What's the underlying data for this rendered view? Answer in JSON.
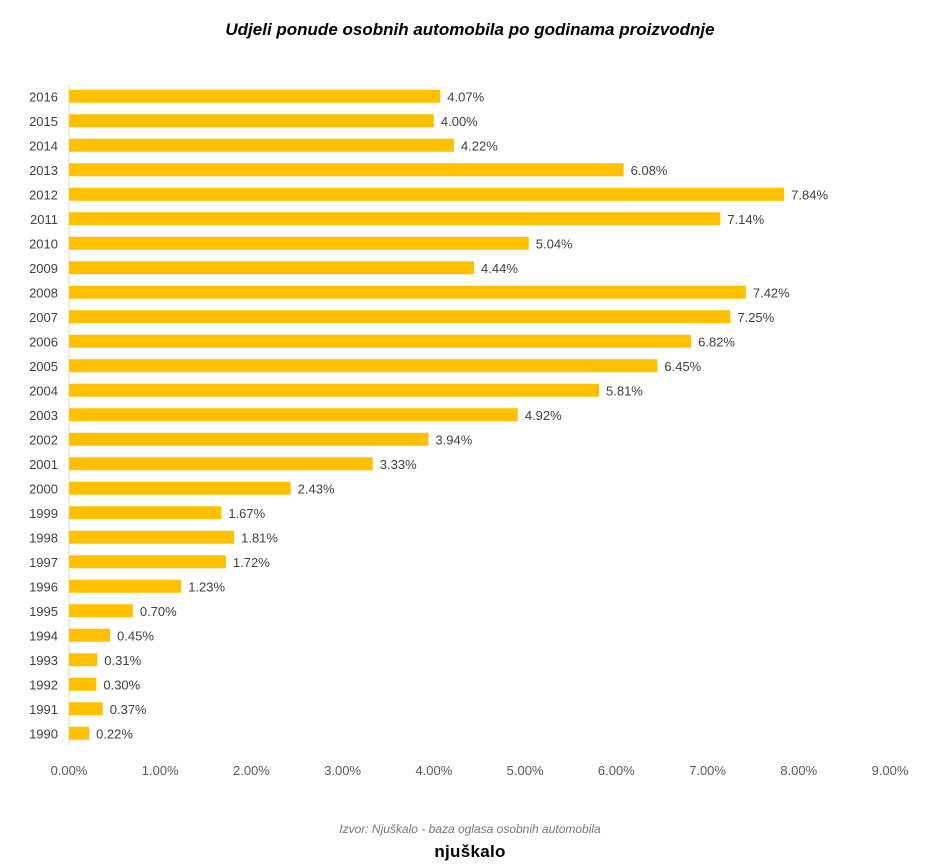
{
  "chart_data": {
    "type": "bar",
    "orientation": "horizontal",
    "title": "Udjeli ponude osobnih automobila po godinama proizvodnje",
    "categories": [
      "2016",
      "2015",
      "2014",
      "2013",
      "2012",
      "2011",
      "2010",
      "2009",
      "2008",
      "2007",
      "2006",
      "2005",
      "2004",
      "2003",
      "2002",
      "2001",
      "2000",
      "1999",
      "1998",
      "1997",
      "1996",
      "1995",
      "1994",
      "1993",
      "1992",
      "1991",
      "1990"
    ],
    "values": [
      4.07,
      4.0,
      4.22,
      6.08,
      7.84,
      7.14,
      5.04,
      4.44,
      7.42,
      7.25,
      6.82,
      6.45,
      5.81,
      4.92,
      3.94,
      3.33,
      2.43,
      1.67,
      1.81,
      1.72,
      1.23,
      0.7,
      0.45,
      0.31,
      0.3,
      0.37,
      0.22
    ],
    "value_labels": [
      "4.07%",
      "4.00%",
      "4.22%",
      "6.08%",
      "7.84%",
      "7.14%",
      "5.04%",
      "4.44%",
      "7.42%",
      "7.25%",
      "6.82%",
      "6.45%",
      "5.81%",
      "4.92%",
      "3.94%",
      "3.33%",
      "2.43%",
      "1.67%",
      "1.81%",
      "1.72%",
      "1.23%",
      "0.70%",
      "0.45%",
      "0.31%",
      "0.30%",
      "0.37%",
      "0.22%"
    ],
    "x_ticks": [
      0,
      1,
      2,
      3,
      4,
      5,
      6,
      7,
      8,
      9
    ],
    "x_tick_labels": [
      "0.00%",
      "1.00%",
      "2.00%",
      "3.00%",
      "4.00%",
      "5.00%",
      "6.00%",
      "7.00%",
      "8.00%",
      "9.00%"
    ],
    "xlim": [
      0,
      9
    ],
    "xlabel": "",
    "ylabel": "",
    "grid": false,
    "bar_color": "#FFC000"
  },
  "footer": {
    "source": "Izvor: Njuškalo -  baza oglasa osobnih automobila",
    "logo_text": "njuškalo"
  }
}
